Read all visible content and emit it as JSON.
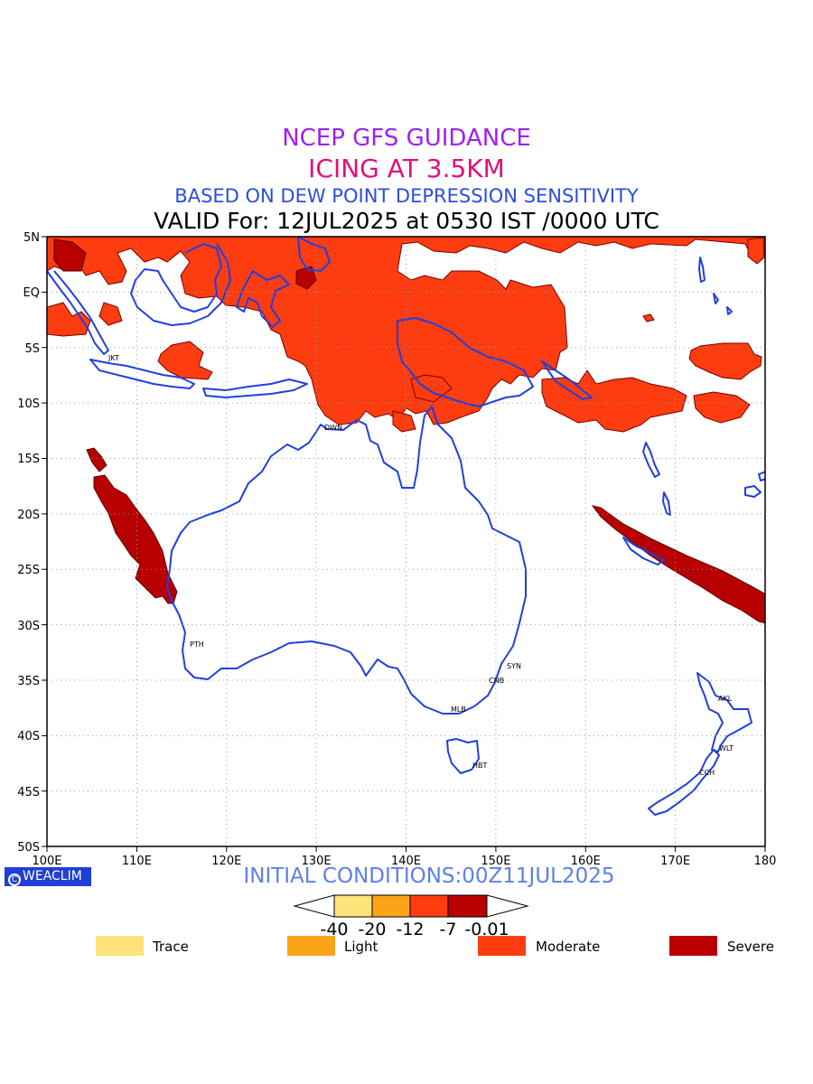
{
  "titles": {
    "line1": "NCEP GFS GUIDANCE",
    "line2": "ICING AT 3.5KM",
    "line3": "BASED ON DEW POINT DEPRESSION SENSITIVITY",
    "line4": "VALID For: 12JUL2025 at 0530 IST /0000 UTC"
  },
  "axes": {
    "x_ticks": [
      "100E",
      "110E",
      "120E",
      "130E",
      "140E",
      "150E",
      "160E",
      "170E",
      "180"
    ],
    "y_ticks": [
      "5N",
      "EQ",
      "5S",
      "10S",
      "15S",
      "20S",
      "25S",
      "30S",
      "35S",
      "40S",
      "45S",
      "50S"
    ],
    "lon_range": [
      100,
      180
    ],
    "lat_range": [
      5,
      -50
    ],
    "grid": "dotted"
  },
  "cities": [
    "JKT",
    "DWN",
    "PTH",
    "SYN",
    "CNB",
    "MLB",
    "HBT",
    "AKL",
    "WLT",
    "CCH"
  ],
  "branding": {
    "logo_text": "WEACLIM",
    "logo_symbol": "C"
  },
  "initial_conditions": "INITIAL CONDITIONS:00Z11JUL2025",
  "colorbar": {
    "tick_labels": [
      "-40",
      "-20",
      "-12",
      "-7",
      "-0.01"
    ],
    "colors": [
      "#fde37a",
      "#fba418",
      "#fd3c10",
      "#b80000"
    ]
  },
  "legend": [
    {
      "label": "Trace",
      "color": "#fde37a"
    },
    {
      "label": "Light",
      "color": "#fba418"
    },
    {
      "label": "Moderate",
      "color": "#fd3c10"
    },
    {
      "label": "Severe",
      "color": "#b80000"
    }
  ],
  "colors": {
    "coast": "#2040e0",
    "moderate_fill": "#fd3c10",
    "severe_fill": "#b80000"
  }
}
